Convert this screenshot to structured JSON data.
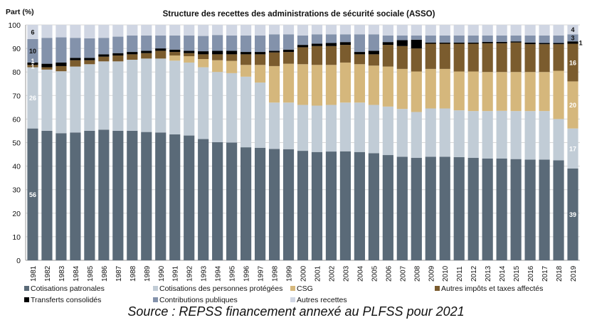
{
  "chart_data": {
    "type": "bar",
    "stacked": true,
    "title": "Structure des recettes des administrations de sécurité sociale (ASSO)",
    "ylabel": "Part (%)",
    "xlabel": "",
    "ylim": [
      0,
      100
    ],
    "yticks": [
      0,
      10,
      20,
      30,
      40,
      50,
      60,
      70,
      80,
      90,
      100
    ],
    "grid": true,
    "legend_position": "bottom",
    "categories": [
      "1981",
      "1982",
      "1983",
      "1984",
      "1985",
      "1986",
      "1987",
      "1988",
      "1989",
      "1990",
      "1991",
      "1992",
      "1993",
      "1994",
      "1995",
      "1996",
      "1997",
      "1998",
      "1999",
      "2000",
      "2001",
      "2002",
      "2003",
      "2004",
      "2005",
      "2006",
      "2007",
      "2008",
      "2009",
      "2010",
      "2011",
      "2012",
      "2013",
      "2014",
      "2015",
      "2016",
      "2017",
      "2018",
      "2019"
    ],
    "series": [
      {
        "name": "Cotisations patronales",
        "color": "#5a6a78",
        "label_color": "#ffffff",
        "values": [
          56,
          55,
          54,
          54.3,
          55,
          55.5,
          55,
          55,
          54.5,
          54.3,
          53.5,
          53,
          51.5,
          50.2,
          50,
          48,
          47.8,
          47.3,
          47.2,
          46.5,
          46,
          46.2,
          46.3,
          46,
          45.5,
          44.7,
          44,
          43.5,
          44,
          44,
          43.8,
          43.5,
          43.2,
          43.2,
          43,
          42.8,
          42.8,
          42.5,
          39
        ]
      },
      {
        "name": "Cotisations des personnes protégées",
        "color": "#c1ccd6",
        "label_color": "#ffffff",
        "values": [
          26,
          26,
          26.3,
          28,
          28.3,
          29,
          29.5,
          30.2,
          31.2,
          31.4,
          31.3,
          31,
          30.5,
          29.8,
          29.5,
          30,
          27.7,
          19.7,
          19.8,
          19.5,
          19.7,
          19.8,
          20.7,
          21,
          20.5,
          20.6,
          20.3,
          19.5,
          20.5,
          20.5,
          19.9,
          19.9,
          20.2,
          20.3,
          20.4,
          20.6,
          20.6,
          17.5,
          17
        ]
      },
      {
        "name": "CSG",
        "color": "#d5b77c",
        "label_color": "#ffffff",
        "values": [
          0,
          0,
          0,
          0,
          0,
          0,
          0,
          0,
          0,
          0,
          2.2,
          2.7,
          3.5,
          5,
          5.2,
          5,
          7.5,
          15.5,
          16.5,
          17.3,
          17.3,
          17,
          17,
          16.3,
          16.7,
          17,
          17,
          17.2,
          16.8,
          16.8,
          16.5,
          16.8,
          16.6,
          16.5,
          16.6,
          16.6,
          16.6,
          20.5,
          20
        ]
      },
      {
        "name": "Autres impôts et taxes affectés",
        "color": "#7b5c2e",
        "label_color": "#ffffff",
        "values": [
          1,
          1,
          2.2,
          2.7,
          1.7,
          2,
          2.5,
          2.3,
          2.3,
          3.3,
          1.5,
          1.3,
          2,
          2.5,
          2.8,
          4.5,
          4.5,
          5.8,
          5,
          7.2,
          8,
          8,
          7.5,
          4.2,
          4.8,
          9.2,
          9.7,
          9.8,
          10.7,
          10.7,
          11.8,
          11.8,
          12.2,
          12.2,
          12.5,
          11.8,
          11.8,
          11.3,
          16
        ]
      },
      {
        "name": "Transferts consolidés",
        "color": "#000000",
        "label_color": "#ffffff",
        "values": [
          1,
          1.5,
          1.5,
          1,
          1,
          1,
          1,
          1,
          1,
          1,
          1,
          1,
          1.3,
          1.5,
          1.5,
          1,
          1,
          0.7,
          1,
          1,
          1,
          1.3,
          1.2,
          1,
          1.5,
          1.2,
          2.5,
          3.7,
          0.5,
          0.5,
          0.5,
          0.5,
          0.6,
          0.6,
          0.5,
          0.7,
          0.5,
          0.5,
          1
        ]
      },
      {
        "name": "Contributions publiques",
        "color": "#8392ab",
        "label_color": "#111111",
        "values": [
          10,
          11,
          10.7,
          8.5,
          8.3,
          7,
          7,
          7,
          6.5,
          5.5,
          6,
          6.5,
          6.5,
          6.7,
          6.5,
          7,
          7,
          7,
          6.5,
          4,
          4,
          3.7,
          3.3,
          7.5,
          7,
          2.8,
          2,
          1.8,
          3,
          3,
          3,
          3,
          2.7,
          2.7,
          2.5,
          3,
          3.2,
          3.2,
          3
        ]
      },
      {
        "name": "Autres recettes",
        "color": "#d0d6e3",
        "label_color": "#111111",
        "values": [
          6,
          5.5,
          5.3,
          5.5,
          5.7,
          5.5,
          5,
          4.5,
          4.5,
          4.5,
          4.5,
          4.5,
          4.7,
          4.3,
          4.5,
          4.5,
          4.5,
          4,
          4,
          4.5,
          4,
          4,
          4,
          4,
          4,
          4.5,
          4.5,
          4.5,
          4.5,
          4.5,
          4.5,
          4.5,
          4.5,
          4.5,
          4.5,
          4.5,
          4.5,
          4.5,
          4
        ]
      }
    ],
    "data_labels": [
      {
        "year": "1981",
        "series": "Cotisations patronales",
        "text": "56"
      },
      {
        "year": "1981",
        "series": "Cotisations des personnes protégées",
        "text": "26"
      },
      {
        "year": "1981",
        "series": "Autres impôts et taxes affectés",
        "text": "1"
      },
      {
        "year": "1981",
        "series": "Transferts consolidés",
        "text": "1"
      },
      {
        "year": "1981",
        "series": "Contributions publiques",
        "text": "10"
      },
      {
        "year": "1981",
        "series": "Autres recettes",
        "text": "6"
      },
      {
        "year": "2019",
        "series": "Cotisations patronales",
        "text": "39"
      },
      {
        "year": "2019",
        "series": "Cotisations des personnes protégées",
        "text": "17"
      },
      {
        "year": "2019",
        "series": "CSG",
        "text": "20"
      },
      {
        "year": "2019",
        "series": "Autres impôts et taxes affectés",
        "text": "16"
      },
      {
        "year": "2019",
        "series": "Transferts consolidés",
        "text": "1"
      },
      {
        "year": "2019",
        "series": "Contributions publiques",
        "text": "3"
      },
      {
        "year": "2019",
        "series": "Autres recettes",
        "text": "4"
      }
    ]
  },
  "source": "Source : REPSS financement annexé au PLFSS pour 2021"
}
